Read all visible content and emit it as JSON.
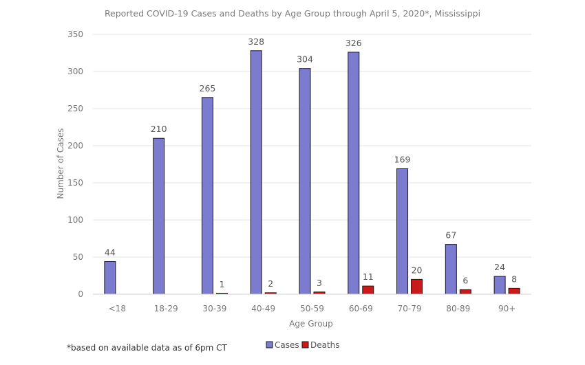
{
  "chart_data": {
    "type": "bar",
    "title": "Reported COVID-19 Cases and Deaths by Age Group through April 5, 2020*, Mississippi",
    "xlabel": "Age Group",
    "ylabel": "Number of Cases",
    "ylim": [
      0,
      350
    ],
    "yticks": [
      0,
      50,
      100,
      150,
      200,
      250,
      300,
      350
    ],
    "grid": true,
    "legend_position": "bottom",
    "categories": [
      "<18",
      "18-29",
      "30-39",
      "40-49",
      "50-59",
      "60-69",
      "70-79",
      "80-89",
      "90+"
    ],
    "series": [
      {
        "name": "Cases",
        "color": "#7b7ccf",
        "values": [
          44,
          210,
          265,
          328,
          304,
          326,
          169,
          67,
          24
        ],
        "labels": [
          "44",
          "210",
          "265",
          "328",
          "304",
          "326",
          "169",
          "67",
          "24"
        ]
      },
      {
        "name": "Deaths",
        "color": "#c81a1a",
        "values": [
          0,
          0,
          1,
          2,
          3,
          11,
          20,
          6,
          8
        ],
        "labels": [
          "",
          "",
          "1",
          "2",
          "3",
          "11",
          "20",
          "6",
          "8"
        ]
      }
    ],
    "footnote": "*based on available data as of 6pm CT"
  }
}
